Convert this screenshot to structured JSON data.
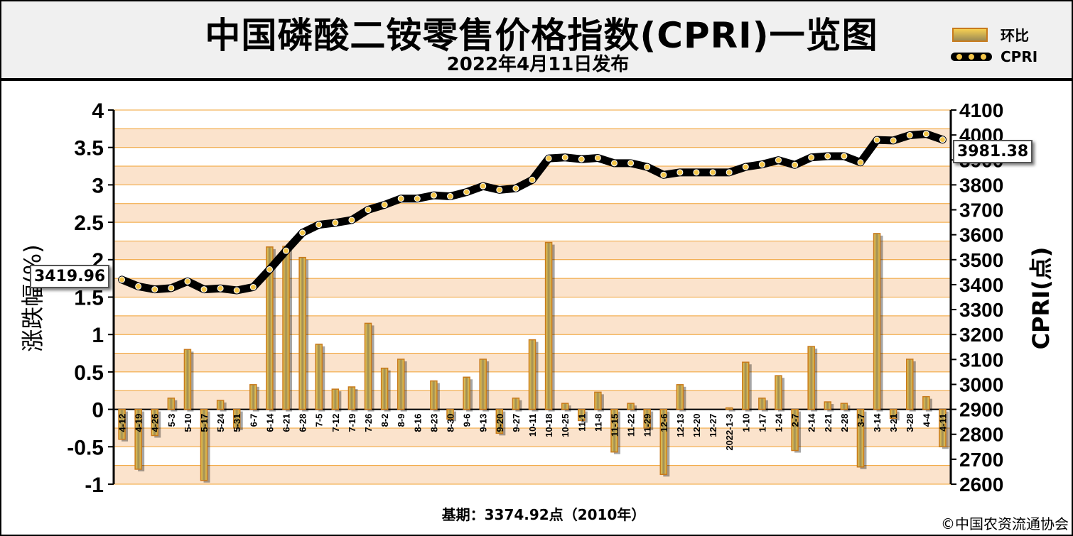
{
  "header": {
    "title": "中国磷酸二铵零售价格指数(CPRI)一览图",
    "subtitle": "2022年4月11日发布"
  },
  "legend": {
    "bar_label": "环比",
    "line_label": "CPRI"
  },
  "callouts": {
    "start_value": "3419.96",
    "end_value": "3981.38"
  },
  "axes": {
    "left_label": "涨跌幅(%)",
    "right_label": "CPRI(点)"
  },
  "footer": {
    "base_note": "基期：3374.92点（2010年）",
    "copyright": "©中国农资流通协会"
  },
  "colors": {
    "bar_fill_top": "#f6cf52",
    "bar_fill_bottom": "#9d8c55",
    "bar_border": "#c87a1c",
    "band_light": "#fbe3cc",
    "band_white": "#ffffff",
    "gridline": "#f0a030",
    "line": "#000000",
    "marker": "#f4c64a",
    "header_bg": "#f0f0f0"
  },
  "chart_data": {
    "type": "bar",
    "categories": [
      "4-12",
      "4-19",
      "4-26",
      "5-3",
      "5-10",
      "5-17",
      "5-24",
      "5-31",
      "6-7",
      "6-14",
      "6-21",
      "6-28",
      "7-5",
      "7-12",
      "7-19",
      "7-26",
      "8-2",
      "8-9",
      "8-16",
      "8-23",
      "8-30",
      "9-6",
      "9-13",
      "9-20",
      "9-27",
      "10-11",
      "10-18",
      "10-25",
      "11-1",
      "11-8",
      "11-15",
      "11-22",
      "11-29",
      "12-6",
      "12-13",
      "12-20",
      "12-27",
      "2022-1-3",
      "1-10",
      "1-17",
      "1-24",
      "2-7",
      "2-14",
      "2-21",
      "2-28",
      "3-7",
      "3-14",
      "3-21",
      "3-28",
      "4-4",
      "4-11"
    ],
    "series": [
      {
        "name": "环比",
        "axis": "left",
        "type": "bar",
        "values": [
          -0.4,
          -0.8,
          -0.35,
          0.15,
          0.8,
          -0.95,
          0.12,
          -0.25,
          0.33,
          2.17,
          2.18,
          2.03,
          0.87,
          0.27,
          0.3,
          1.15,
          0.55,
          0.67,
          0.0,
          0.38,
          -0.13,
          0.43,
          0.67,
          -0.32,
          0.15,
          0.93,
          2.23,
          0.08,
          -0.15,
          0.23,
          -0.57,
          0.08,
          -0.25,
          -0.87,
          0.33,
          0.0,
          0.0,
          0.02,
          0.63,
          0.15,
          0.45,
          -0.55,
          0.84,
          0.1,
          0.08,
          -0.77,
          2.35,
          -0.12,
          0.67,
          0.17,
          -0.5
        ]
      },
      {
        "name": "CPRI",
        "axis": "right",
        "type": "line",
        "values": [
          3419.96,
          3393,
          3381,
          3386,
          3413,
          3381,
          3385,
          3377,
          3390,
          3461,
          3536,
          3608,
          3640,
          3648,
          3659,
          3700,
          3720,
          3745,
          3745,
          3758,
          3754,
          3771,
          3795,
          3780,
          3786,
          3820,
          3906,
          3910,
          3903,
          3908,
          3887,
          3887,
          3872,
          3840,
          3850,
          3850,
          3850,
          3850,
          3872,
          3882,
          3899,
          3880,
          3910,
          3915,
          3915,
          3890,
          3980,
          3978,
          3999,
          4004,
          3981.38
        ]
      }
    ],
    "ylim_left": [
      -1,
      4
    ],
    "ylim_right": [
      2600,
      4100
    ],
    "yticks_left": [
      "-1",
      "-0.5",
      "0",
      "0.5",
      "1",
      "1.5",
      "2",
      "2.5",
      "3",
      "3.5",
      "4"
    ],
    "yticks_right": [
      "2600",
      "2700",
      "2800",
      "2900",
      "3000",
      "3100",
      "3200",
      "3300",
      "3400",
      "3500",
      "3600",
      "3700",
      "3800",
      "3900",
      "4000",
      "4100"
    ],
    "ylabel_left": "涨跌幅(%)",
    "ylabel_right": "CPRI(点)",
    "legend": "top-right"
  }
}
